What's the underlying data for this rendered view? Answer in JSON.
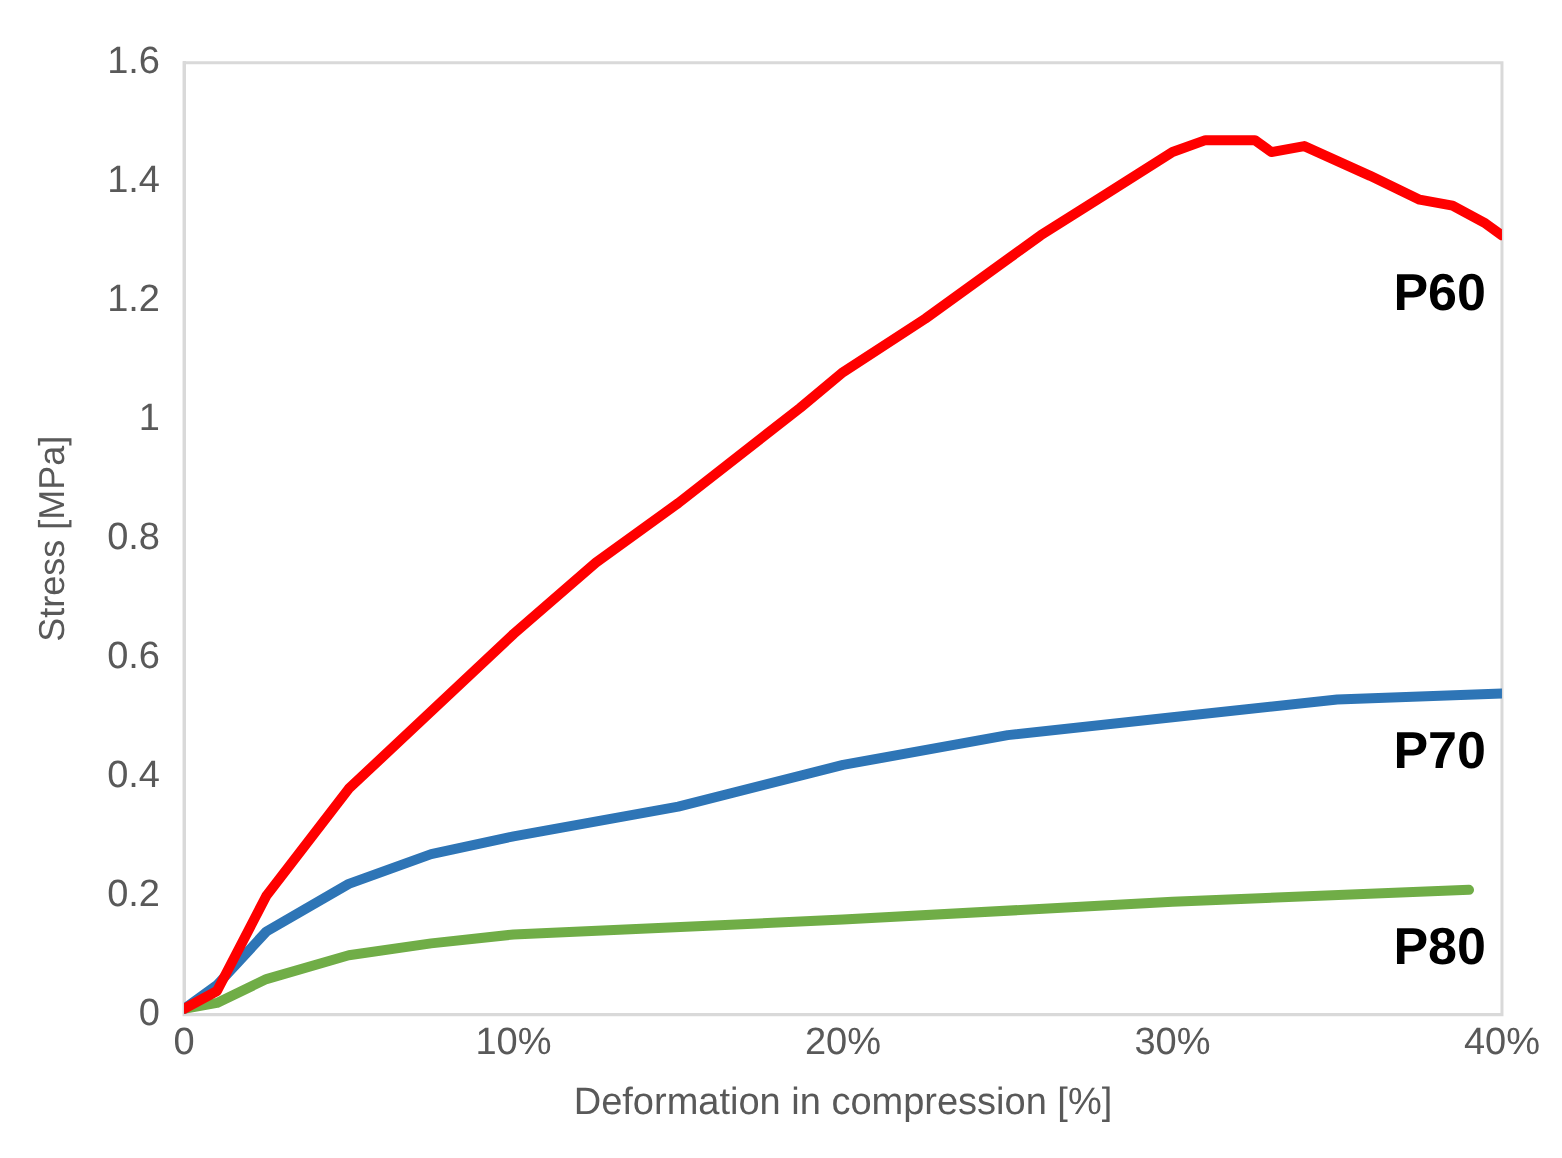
{
  "chart_data": {
    "type": "line",
    "xlabel": "Deformation in compression [%]",
    "ylabel": "Stress [MPa]",
    "xlim": [
      0,
      40
    ],
    "xticks": [
      {
        "value": 0,
        "label": "0"
      },
      {
        "value": 10,
        "label": "10%"
      },
      {
        "value": 20,
        "label": "20%"
      },
      {
        "value": 30,
        "label": "30%"
      },
      {
        "value": 40,
        "label": "40%"
      }
    ],
    "ylim": [
      0,
      1.6
    ],
    "yticks": [
      0,
      0.2,
      0.4,
      0.6,
      0.8,
      1,
      1.2,
      1.4,
      1.6
    ],
    "grid": false,
    "legend": false,
    "marker": "none",
    "line_style": "solid",
    "series": [
      {
        "name": "P60",
        "color": "#ff0000",
        "x": [
          0,
          1,
          2.5,
          5,
          7.5,
          10,
          12.5,
          15,
          18.7,
          20,
          22.5,
          25,
          26,
          28,
          30,
          31,
          32.5,
          33,
          34,
          36,
          37.5,
          38.5,
          39.5,
          40
        ],
        "values": [
          0.01,
          0.04,
          0.2,
          0.38,
          0.51,
          0.64,
          0.76,
          0.86,
          1.02,
          1.08,
          1.17,
          1.27,
          1.31,
          1.38,
          1.45,
          1.47,
          1.47,
          1.45,
          1.46,
          1.41,
          1.37,
          1.36,
          1.33,
          1.31
        ]
      },
      {
        "name": "P70",
        "color": "#2e75b6",
        "x": [
          0,
          1,
          2.5,
          5,
          7.5,
          10,
          15,
          20,
          25,
          30,
          35,
          40
        ],
        "values": [
          0.01,
          0.05,
          0.14,
          0.22,
          0.27,
          0.3,
          0.35,
          0.42,
          0.47,
          0.5,
          0.53,
          0.54
        ]
      },
      {
        "name": "P80",
        "color": "#70ad47",
        "x": [
          0,
          1,
          2.5,
          5,
          7.5,
          10,
          20,
          30,
          39
        ],
        "values": [
          0.01,
          0.02,
          0.06,
          0.1,
          0.12,
          0.135,
          0.16,
          0.19,
          0.21
        ]
      }
    ]
  }
}
